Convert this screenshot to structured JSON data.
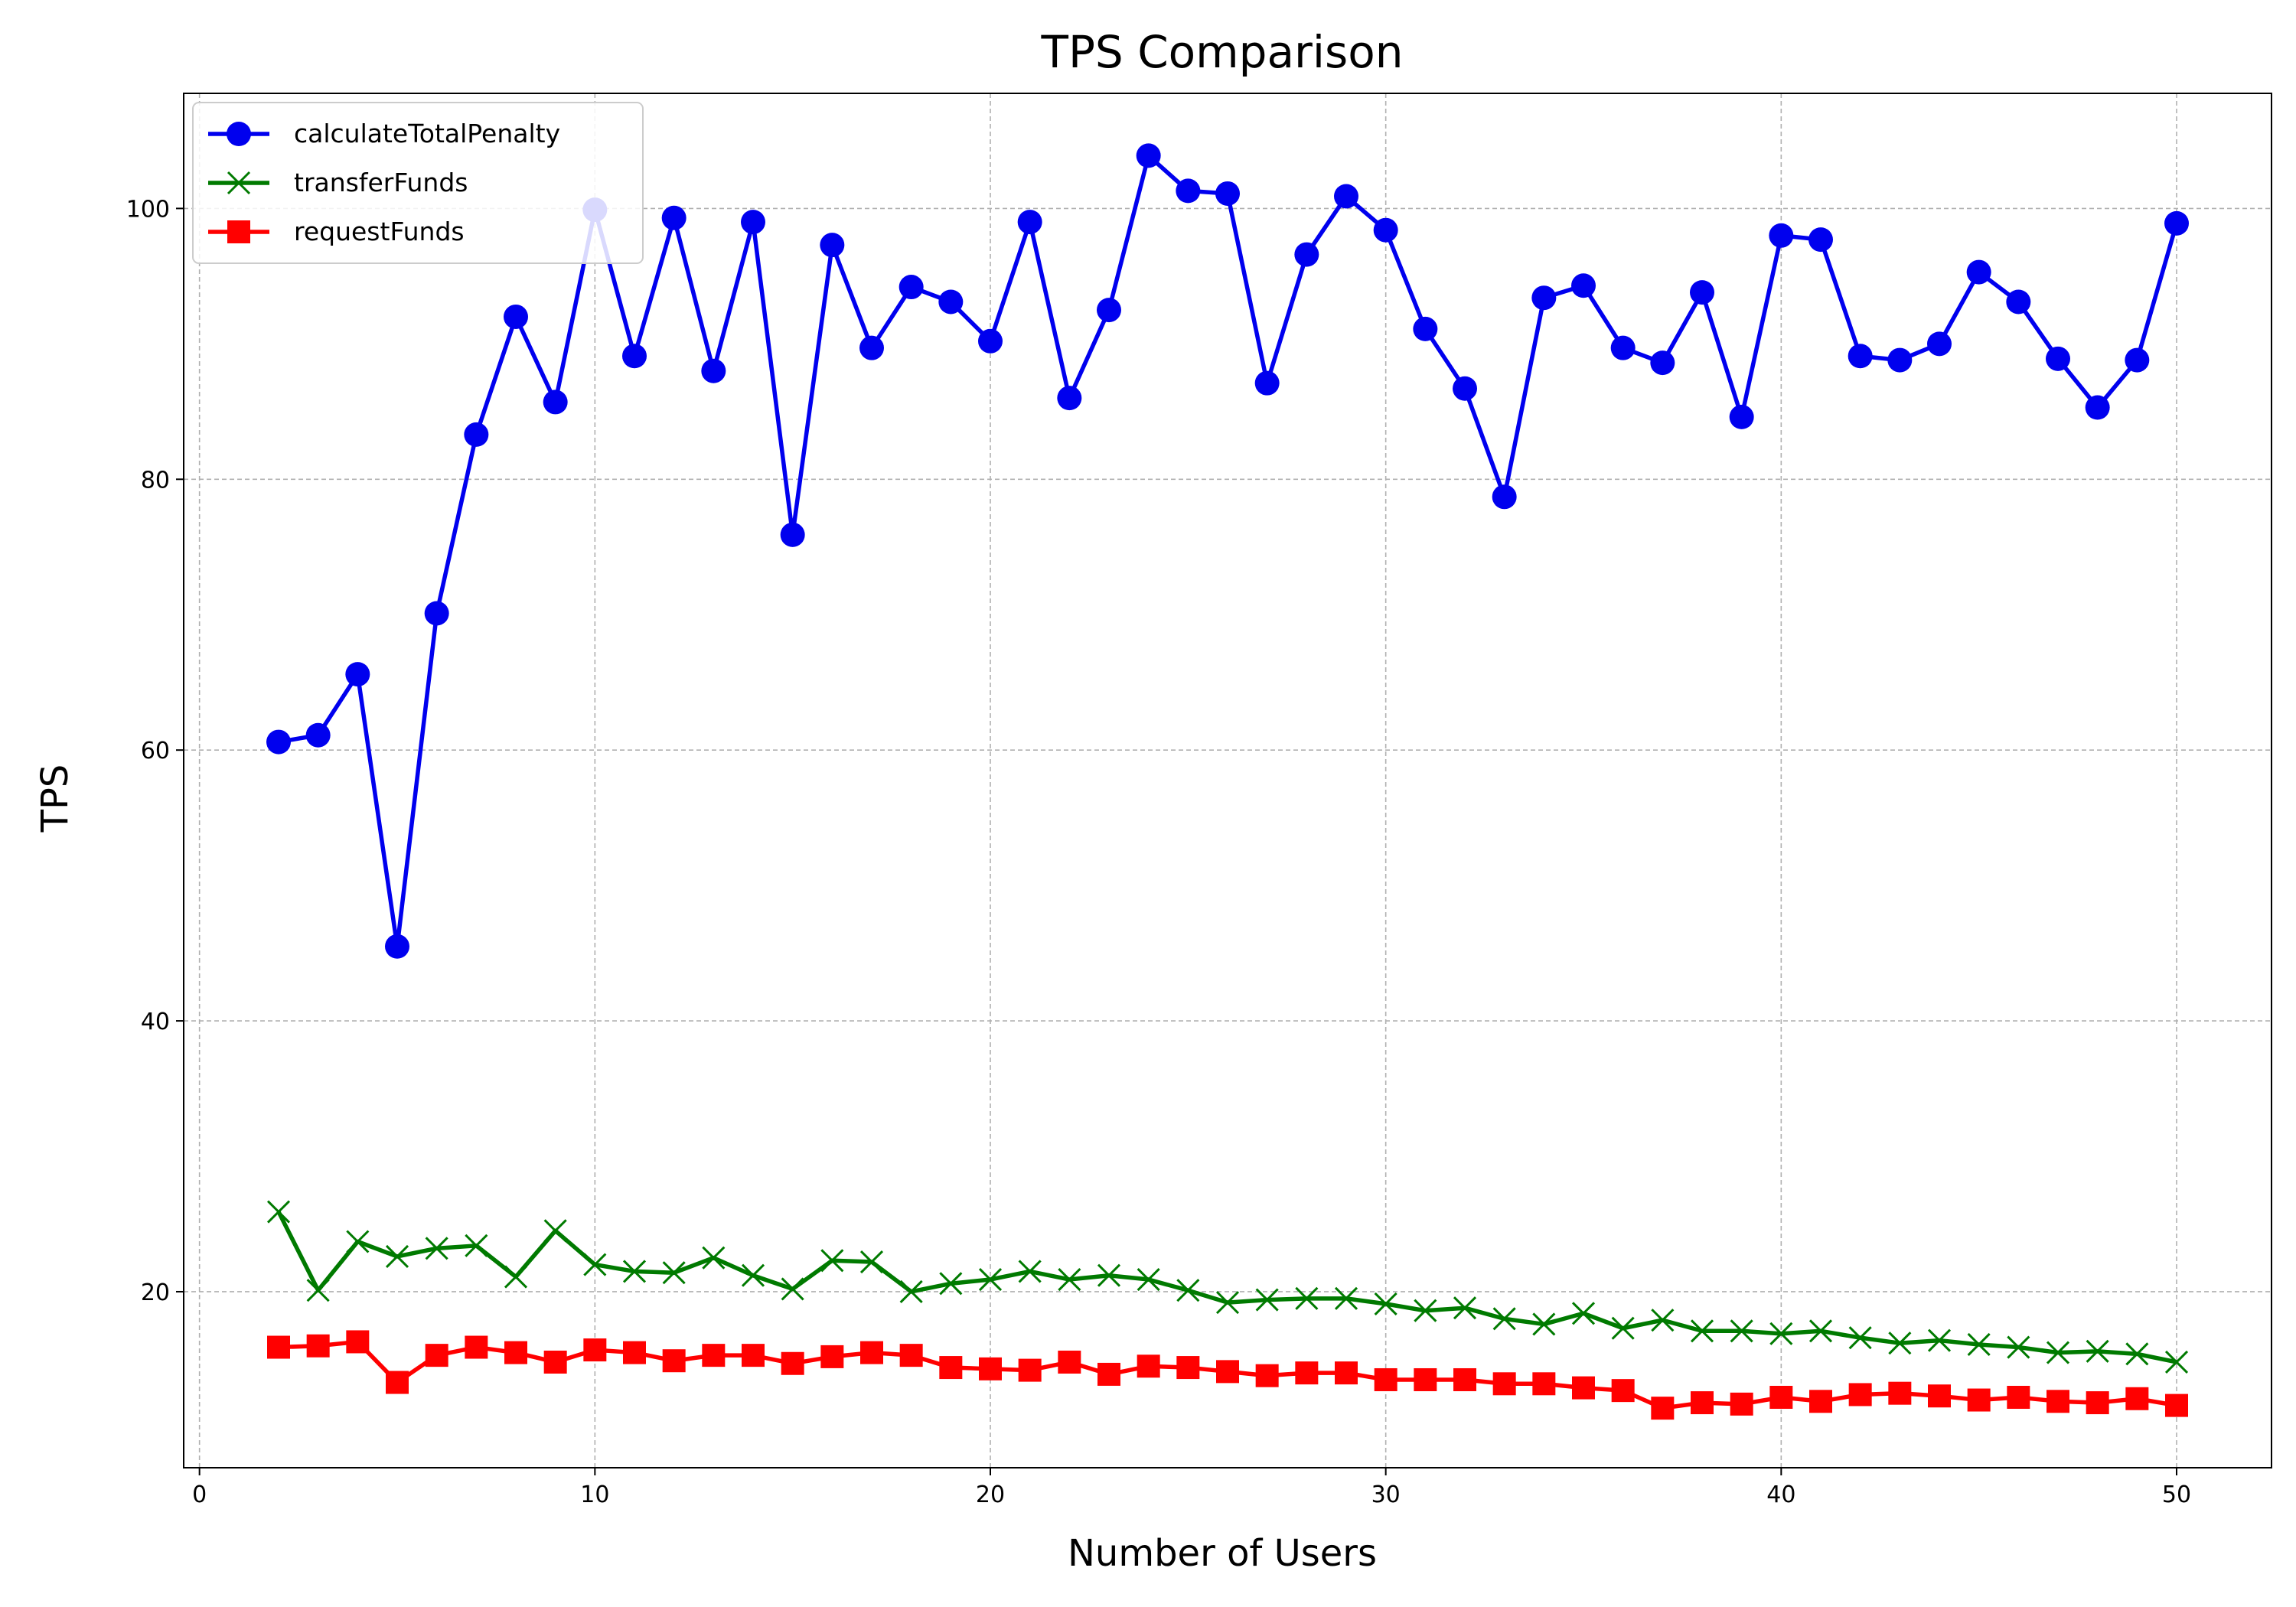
{
  "chart_data": {
    "type": "line",
    "title": "TPS Comparison",
    "xlabel": "Number of Users",
    "ylabel": "TPS",
    "xlim": [
      -0.4,
      52.4
    ],
    "ylim": [
      7,
      108.5
    ],
    "xticks": [
      0,
      10,
      20,
      30,
      40,
      50
    ],
    "yticks": [
      20,
      40,
      60,
      80,
      100
    ],
    "grid": true,
    "legend_position": "top-left",
    "x": [
      2,
      3,
      4,
      5,
      6,
      7,
      8,
      9,
      10,
      11,
      12,
      13,
      14,
      15,
      16,
      17,
      18,
      19,
      20,
      21,
      22,
      23,
      24,
      25,
      26,
      27,
      28,
      29,
      30,
      31,
      32,
      33,
      34,
      35,
      36,
      37,
      38,
      39,
      40,
      41,
      42,
      43,
      44,
      45,
      46,
      47,
      48,
      49,
      50
    ],
    "series": [
      {
        "name": "calculateTotalPenalty",
        "color": "#0000ee",
        "marker": "circle",
        "values": [
          60.6,
          61.1,
          65.6,
          45.5,
          70.1,
          83.3,
          92.0,
          85.7,
          99.9,
          89.1,
          99.3,
          88.0,
          99.0,
          75.9,
          97.3,
          89.7,
          94.2,
          93.1,
          90.2,
          99.0,
          86.0,
          92.5,
          103.9,
          101.3,
          101.1,
          87.1,
          96.6,
          100.9,
          98.4,
          91.1,
          86.7,
          78.7,
          93.4,
          94.3,
          89.7,
          88.6,
          93.8,
          84.6,
          98.0,
          97.7,
          89.1,
          88.8,
          90.0,
          95.3,
          93.1,
          88.9,
          85.3,
          88.8,
          98.9
        ]
      },
      {
        "name": "transferFunds",
        "color": "#007a00",
        "marker": "x",
        "values": [
          25.9,
          20.1,
          23.7,
          22.6,
          23.2,
          23.4,
          21.1,
          24.5,
          22.0,
          21.5,
          21.4,
          22.5,
          21.2,
          20.2,
          22.3,
          22.2,
          20.0,
          20.6,
          20.9,
          21.5,
          20.9,
          21.2,
          20.9,
          20.1,
          19.2,
          19.4,
          19.5,
          19.5,
          19.1,
          18.6,
          18.8,
          18.0,
          17.6,
          18.4,
          17.3,
          17.9,
          17.1,
          17.1,
          16.9,
          17.1,
          16.6,
          16.2,
          16.4,
          16.1,
          15.9,
          15.5,
          15.6,
          15.4,
          14.8
        ]
      },
      {
        "name": "requestFunds",
        "color": "#ff0000",
        "marker": "square",
        "values": [
          15.9,
          16.0,
          16.3,
          13.3,
          15.3,
          15.9,
          15.5,
          14.8,
          15.7,
          15.5,
          14.9,
          15.3,
          15.3,
          14.7,
          15.2,
          15.5,
          15.3,
          14.4,
          14.3,
          14.2,
          14.8,
          13.9,
          14.5,
          14.4,
          14.1,
          13.8,
          14.0,
          14.0,
          13.5,
          13.5,
          13.5,
          13.2,
          13.2,
          12.9,
          12.7,
          11.4,
          11.8,
          11.7,
          12.2,
          11.9,
          12.4,
          12.5,
          12.3,
          12.0,
          12.2,
          11.9,
          11.8,
          12.1,
          11.6
        ]
      }
    ]
  }
}
